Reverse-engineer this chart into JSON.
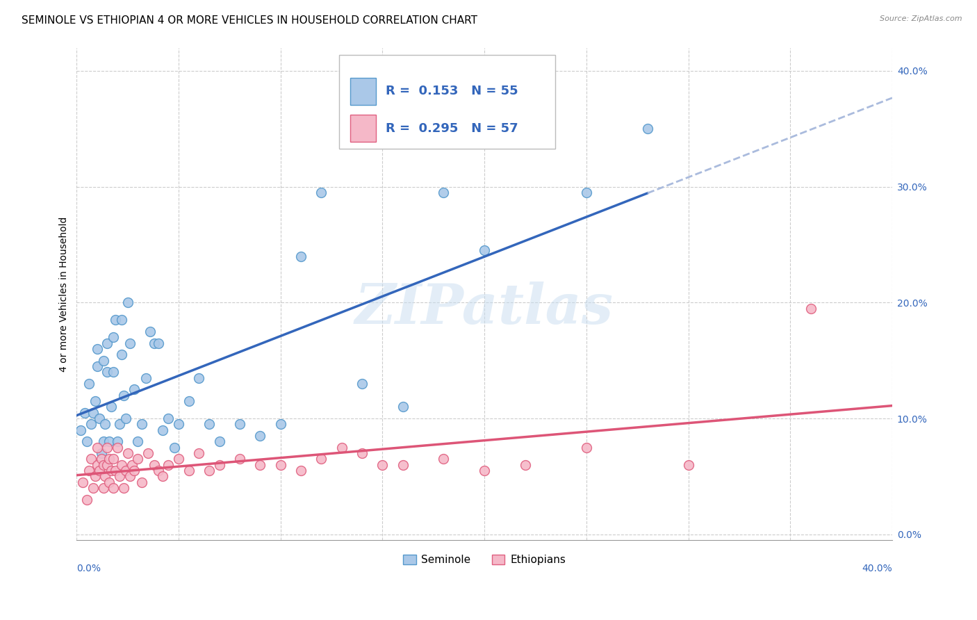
{
  "title": "SEMINOLE VS ETHIOPIAN 4 OR MORE VEHICLES IN HOUSEHOLD CORRELATION CHART",
  "source": "Source: ZipAtlas.com",
  "ylabel": "4 or more Vehicles in Household",
  "ylabel_right_labels": [
    "0.0%",
    "10.0%",
    "20.0%",
    "30.0%",
    "40.0%"
  ],
  "ylabel_right_values": [
    0.0,
    0.1,
    0.2,
    0.3,
    0.4
  ],
  "xlim": [
    0.0,
    0.4
  ],
  "ylim": [
    -0.005,
    0.42
  ],
  "legend1_R": "0.153",
  "legend1_N": "55",
  "legend2_R": "0.295",
  "legend2_N": "57",
  "seminole_color": "#aac8e8",
  "ethiopian_color": "#f5b8c8",
  "seminole_edge": "#5599cc",
  "ethiopian_edge": "#e06080",
  "trendline1_color": "#3366bb",
  "trendline2_color": "#dd5577",
  "dashed_color": "#aabbdd",
  "watermark": "ZIPatlas",
  "seminole_x": [
    0.002,
    0.004,
    0.005,
    0.006,
    0.007,
    0.008,
    0.009,
    0.01,
    0.01,
    0.011,
    0.012,
    0.013,
    0.013,
    0.014,
    0.015,
    0.015,
    0.016,
    0.017,
    0.018,
    0.018,
    0.019,
    0.02,
    0.021,
    0.022,
    0.022,
    0.023,
    0.024,
    0.025,
    0.026,
    0.028,
    0.03,
    0.032,
    0.034,
    0.036,
    0.038,
    0.04,
    0.042,
    0.045,
    0.048,
    0.05,
    0.055,
    0.06,
    0.065,
    0.07,
    0.08,
    0.09,
    0.1,
    0.11,
    0.12,
    0.14,
    0.16,
    0.18,
    0.2,
    0.25,
    0.28
  ],
  "seminole_y": [
    0.09,
    0.105,
    0.08,
    0.13,
    0.095,
    0.105,
    0.115,
    0.145,
    0.16,
    0.1,
    0.07,
    0.15,
    0.08,
    0.095,
    0.165,
    0.14,
    0.08,
    0.11,
    0.17,
    0.14,
    0.185,
    0.08,
    0.095,
    0.185,
    0.155,
    0.12,
    0.1,
    0.2,
    0.165,
    0.125,
    0.08,
    0.095,
    0.135,
    0.175,
    0.165,
    0.165,
    0.09,
    0.1,
    0.075,
    0.095,
    0.115,
    0.135,
    0.095,
    0.08,
    0.095,
    0.085,
    0.095,
    0.24,
    0.295,
    0.13,
    0.11,
    0.295,
    0.245,
    0.295,
    0.35
  ],
  "ethiopian_x": [
    0.003,
    0.005,
    0.006,
    0.007,
    0.008,
    0.009,
    0.01,
    0.01,
    0.011,
    0.012,
    0.013,
    0.013,
    0.014,
    0.015,
    0.015,
    0.016,
    0.016,
    0.017,
    0.018,
    0.018,
    0.019,
    0.02,
    0.021,
    0.022,
    0.023,
    0.024,
    0.025,
    0.026,
    0.027,
    0.028,
    0.03,
    0.032,
    0.035,
    0.038,
    0.04,
    0.042,
    0.045,
    0.05,
    0.055,
    0.06,
    0.065,
    0.07,
    0.08,
    0.09,
    0.1,
    0.11,
    0.12,
    0.13,
    0.14,
    0.15,
    0.16,
    0.18,
    0.2,
    0.22,
    0.25,
    0.3,
    0.36
  ],
  "ethiopian_y": [
    0.045,
    0.03,
    0.055,
    0.065,
    0.04,
    0.05,
    0.06,
    0.075,
    0.055,
    0.065,
    0.04,
    0.06,
    0.05,
    0.075,
    0.06,
    0.045,
    0.065,
    0.055,
    0.065,
    0.04,
    0.055,
    0.075,
    0.05,
    0.06,
    0.04,
    0.055,
    0.07,
    0.05,
    0.06,
    0.055,
    0.065,
    0.045,
    0.07,
    0.06,
    0.055,
    0.05,
    0.06,
    0.065,
    0.055,
    0.07,
    0.055,
    0.06,
    0.065,
    0.06,
    0.06,
    0.055,
    0.065,
    0.075,
    0.07,
    0.06,
    0.06,
    0.065,
    0.055,
    0.06,
    0.075,
    0.06,
    0.195
  ],
  "grid_color": "#cccccc",
  "background_color": "#ffffff",
  "title_fontsize": 11,
  "axis_label_fontsize": 10,
  "tick_fontsize": 10,
  "legend_fontsize": 13
}
